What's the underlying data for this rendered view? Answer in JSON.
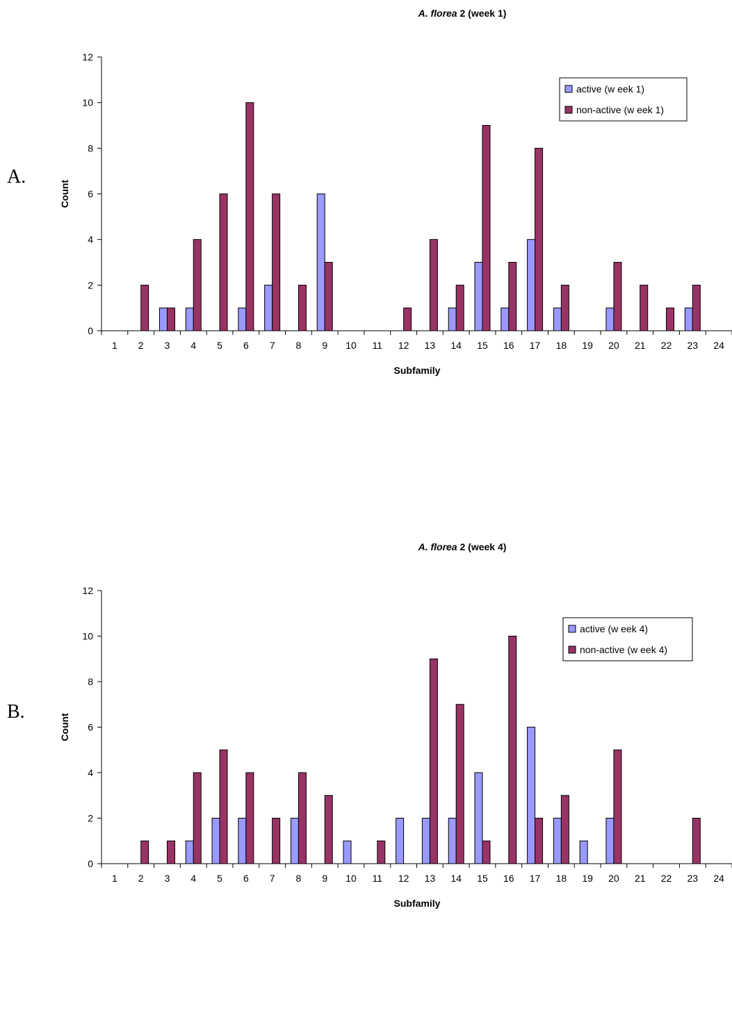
{
  "colors": {
    "active": "#9999ff",
    "nonactive": "#993366",
    "axis": "#000000"
  },
  "panels": [
    {
      "letter": "A.",
      "title_italic": "A. florea",
      "title_rest": " 2 (week 1)"
    },
    {
      "letter": "B.",
      "title_italic": "A. florea",
      "title_rest": " 2 (week 4)"
    }
  ],
  "chart_data": [
    {
      "type": "bar",
      "title": "A. florea 2 (week 1)",
      "xlabel": "Subfamily",
      "ylabel": "Count",
      "ylim": [
        0,
        12
      ],
      "yticks": [
        0,
        2,
        4,
        6,
        8,
        10,
        12
      ],
      "grid": false,
      "legend_position": "top-right",
      "categories": [
        "1",
        "2",
        "3",
        "4",
        "5",
        "6",
        "7",
        "8",
        "9",
        "10",
        "11",
        "12",
        "13",
        "14",
        "15",
        "16",
        "17",
        "18",
        "19",
        "20",
        "21",
        "22",
        "23",
        "24"
      ],
      "series": [
        {
          "name": "active (w eek 1)",
          "values": [
            0,
            0,
            1,
            1,
            0,
            1,
            2,
            0,
            6,
            0,
            0,
            0,
            0,
            1,
            3,
            1,
            4,
            1,
            0,
            1,
            0,
            0,
            1,
            0
          ]
        },
        {
          "name": "non-active (w eek 1)",
          "values": [
            0,
            2,
            1,
            4,
            6,
            10,
            6,
            2,
            3,
            0,
            0,
            1,
            4,
            2,
            9,
            3,
            8,
            2,
            0,
            3,
            2,
            1,
            2,
            0
          ]
        }
      ]
    },
    {
      "type": "bar",
      "title": "A. florea 2 (week 4)",
      "xlabel": "Subfamily",
      "ylabel": "Count",
      "ylim": [
        0,
        12
      ],
      "yticks": [
        0,
        2,
        4,
        6,
        8,
        10,
        12
      ],
      "grid": false,
      "legend_position": "top-right",
      "categories": [
        "1",
        "2",
        "3",
        "4",
        "5",
        "6",
        "7",
        "8",
        "9",
        "10",
        "11",
        "12",
        "13",
        "14",
        "15",
        "16",
        "17",
        "18",
        "19",
        "20",
        "21",
        "22",
        "23",
        "24"
      ],
      "series": [
        {
          "name": "active (w eek 4)",
          "values": [
            0,
            0,
            0,
            1,
            2,
            2,
            0,
            2,
            0,
            1,
            0,
            2,
            2,
            2,
            4,
            0,
            6,
            2,
            1,
            2,
            0,
            0,
            0,
            0
          ]
        },
        {
          "name": "non-active (w eek 4)",
          "values": [
            0,
            1,
            1,
            4,
            5,
            4,
            2,
            4,
            3,
            0,
            1,
            0,
            9,
            7,
            1,
            10,
            2,
            3,
            0,
            5,
            0,
            0,
            2,
            0
          ]
        }
      ]
    }
  ]
}
